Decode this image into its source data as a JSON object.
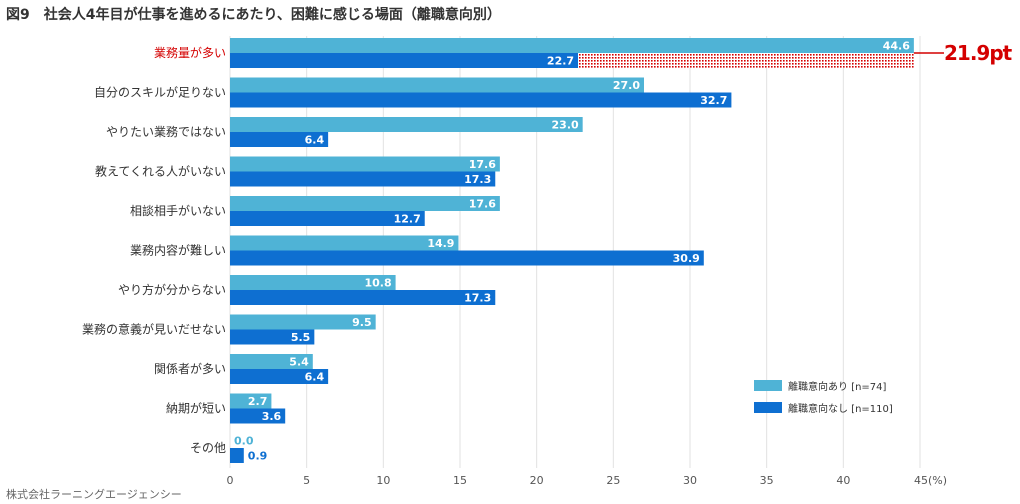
{
  "title": "図9　社会人4年目が仕事を進めるにあたり、困難に感じる場面（離職意向別）",
  "source": "株式会社ラーニングエージェンシー",
  "colors": {
    "series_a": "#4fb3d6",
    "series_b": "#0e6fd1",
    "highlight": "#d40000",
    "grid": "#e2e2e2",
    "gap_pattern": "#d40000"
  },
  "chart_data": {
    "type": "bar",
    "orientation": "horizontal",
    "title": "図9　社会人4年目が仕事を進めるにあたり、困難に感じる場面（離職意向別）",
    "categories": [
      "業務量が多い",
      "自分のスキルが足りない",
      "やりたい業務ではない",
      "教えてくれる人がいない",
      "相談相手がいない",
      "業務内容が難しい",
      "やり方が分からない",
      "業務の意義が見いだせない",
      "関係者が多い",
      "納期が短い",
      "その他"
    ],
    "highlight_category": "業務量が多い",
    "series": [
      {
        "name": "離職意向あり [n=74]",
        "values": [
          44.6,
          27.0,
          23.0,
          17.6,
          17.6,
          14.9,
          10.8,
          9.5,
          5.4,
          2.7,
          0.0
        ],
        "labels": [
          "44.6",
          "27.0",
          "23.0",
          "17.6",
          "17.6",
          "14.9",
          "10.8",
          "9.5",
          "5.4",
          "2.7",
          "0.0"
        ]
      },
      {
        "name": "離職意向なし [n=110]",
        "values": [
          22.7,
          32.7,
          6.4,
          17.3,
          12.7,
          30.9,
          17.3,
          5.5,
          6.4,
          3.6,
          0.9
        ],
        "labels": [
          "22.7",
          "32.7",
          "6.4",
          "17.3",
          "12.7",
          "30.9",
          "17.3",
          "5.5",
          "6.4",
          "3.6",
          "0.9"
        ]
      }
    ],
    "xlim": [
      0,
      45
    ],
    "ticks": [
      "0",
      "5",
      "10",
      "15",
      "20",
      "25",
      "30",
      "35",
      "40",
      "45(%)"
    ],
    "tick_values": [
      0,
      5,
      10,
      15,
      20,
      25,
      30,
      35,
      40,
      45
    ],
    "annotation": {
      "category": "業務量が多い",
      "text": "21.9pt",
      "value": 21.9
    },
    "legend_position": "bottom-right",
    "grid": true
  }
}
